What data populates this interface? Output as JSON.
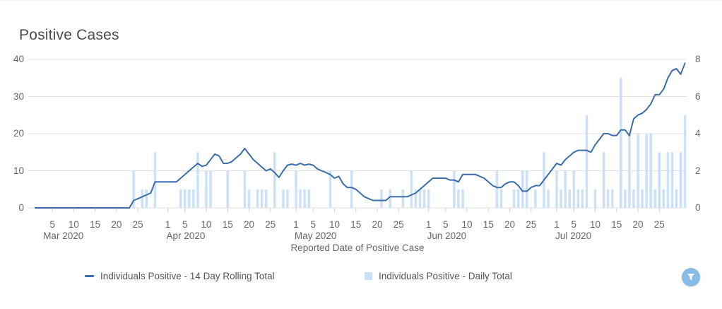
{
  "page": {
    "title": "Positive Cases"
  },
  "chart_data": {
    "type": "mixed",
    "title": "Positive Cases",
    "xlabel": "Reported Date of Positive Case",
    "x_axis": {
      "months": [
        {
          "label": "Mar 2020",
          "days_in_month": 31,
          "tick_days": [
            5,
            10,
            15,
            20,
            25
          ]
        },
        {
          "label": "Apr 2020",
          "days_in_month": 30,
          "tick_days": [
            1,
            5,
            10,
            15,
            20,
            25
          ]
        },
        {
          "label": "May 2020",
          "days_in_month": 31,
          "tick_days": [
            1,
            5,
            10,
            15,
            20,
            25
          ]
        },
        {
          "label": "Jun 2020",
          "days_in_month": 30,
          "tick_days": [
            1,
            5,
            10,
            15,
            20,
            25
          ]
        },
        {
          "label": "Jul 2020",
          "days_in_month": 31,
          "tick_days": [
            1,
            5,
            10,
            15,
            20,
            25
          ]
        }
      ],
      "range": [
        "Mar 1 2020",
        "Jul 31 2020"
      ]
    },
    "left_axis": {
      "min": 0,
      "max": 40,
      "ticks": [
        0,
        10,
        20,
        30,
        40
      ]
    },
    "right_axis": {
      "min": 0,
      "max": 8,
      "ticks": [
        0,
        2,
        4,
        6,
        8
      ]
    },
    "grid": "horizontal-only",
    "legend_position": "bottom",
    "series": [
      {
        "name": "Individuals Positive - 14 Day Rolling Total",
        "type": "line",
        "axis": "left",
        "color": "#3b6da8",
        "values": [
          0,
          0,
          0,
          0,
          0,
          0,
          0,
          0,
          0,
          0,
          0,
          0,
          0,
          0,
          0,
          0,
          0,
          0,
          0,
          0,
          0,
          0,
          0,
          2,
          2.5,
          3,
          3.5,
          4,
          7,
          7,
          7,
          7,
          7,
          7,
          8,
          9,
          10,
          11,
          12,
          11.2,
          11.5,
          13,
          14.5,
          14,
          12,
          12,
          12.5,
          13.5,
          14.5,
          16,
          14.5,
          13,
          12,
          11,
          10,
          10.5,
          9.5,
          8.2,
          10,
          11.5,
          11.8,
          11.5,
          12,
          11.5,
          11.8,
          11.5,
          10.5,
          10,
          9.5,
          9,
          8,
          8.5,
          6.5,
          5.5,
          5.5,
          5,
          4,
          3,
          2.5,
          2,
          2,
          2,
          2,
          3,
          3,
          3,
          3,
          3,
          3.5,
          4,
          5,
          6,
          7,
          8,
          8,
          8,
          8,
          7.5,
          7.5,
          7,
          9,
          9,
          9,
          9,
          8.5,
          8,
          7,
          6,
          5.5,
          5.5,
          6.5,
          7,
          7,
          6,
          4.5,
          4.5,
          5.5,
          6,
          6,
          7.5,
          9,
          10.5,
          12,
          11.5,
          13,
          14,
          15,
          15.5,
          15.5,
          15.5,
          15,
          17,
          18.5,
          20,
          20,
          19.5,
          19.5,
          21,
          21,
          19.5,
          24,
          25,
          25.5,
          26.5,
          28,
          30.5,
          30.5,
          32,
          35,
          37,
          37.5,
          36,
          39
        ]
      },
      {
        "name": "Individuals Positive - Daily Total",
        "type": "bar",
        "axis": "right",
        "color": "#cce1f7",
        "values": [
          0,
          0,
          0,
          0,
          0,
          0,
          0,
          0,
          0,
          0,
          0,
          0,
          0,
          0,
          0,
          0,
          0,
          0,
          0,
          0,
          0,
          0,
          0,
          2,
          0,
          1,
          1,
          0,
          3,
          0,
          0,
          0,
          0,
          0,
          1,
          1,
          1,
          1,
          3,
          0,
          2,
          2,
          0,
          0,
          0,
          2,
          0,
          0,
          0,
          2,
          1,
          0,
          1,
          1,
          1,
          0,
          3,
          0,
          1,
          1,
          0,
          2,
          1,
          1,
          1,
          0,
          0,
          0,
          0,
          2,
          0,
          0,
          0,
          0,
          2,
          0,
          0,
          0,
          0,
          0,
          0,
          1,
          0,
          1,
          0,
          0,
          1,
          0,
          2,
          1,
          1,
          1,
          1,
          0,
          0,
          0,
          0,
          0,
          2,
          1,
          1,
          0,
          0,
          0,
          0,
          0,
          0,
          0,
          2,
          1,
          0,
          0,
          1,
          1,
          2,
          2,
          0,
          1,
          0,
          3,
          1,
          0,
          2,
          1,
          2,
          1,
          2,
          1,
          1,
          5,
          0,
          1,
          0,
          3,
          1,
          1,
          0,
          7,
          1,
          4,
          1,
          4,
          1,
          4,
          4,
          1,
          3,
          1,
          3,
          3,
          1,
          3,
          5
        ]
      }
    ],
    "colors": {
      "grid": "#e0e0e0",
      "tick": "#cccccc",
      "axis_text": "#666666",
      "title_text": "#4a4a4a",
      "legend_text": "#555555",
      "filter_button": "#87bce8",
      "filter_icon": "#ffffff"
    }
  },
  "controls": {
    "filter_button": "filter"
  }
}
